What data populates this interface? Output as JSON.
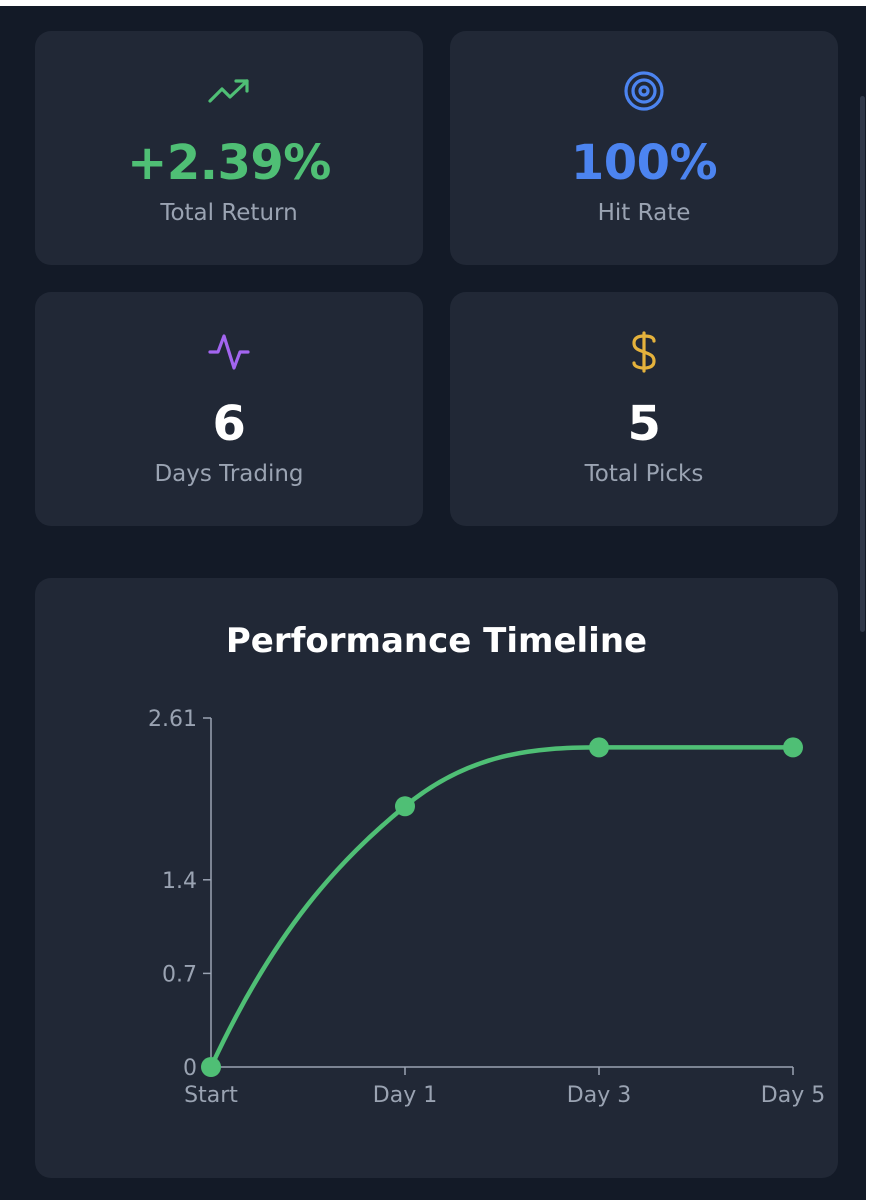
{
  "stats": [
    {
      "value": "+2.39%",
      "label": "Total Return",
      "icon": "trending-up-icon",
      "color": "#4fbf75"
    },
    {
      "value": "100%",
      "label": "Hit Rate",
      "icon": "target-icon",
      "color": "#4c84f0"
    },
    {
      "value": "6",
      "label": "Days Trading",
      "icon": "activity-icon",
      "color": "#a365f0"
    },
    {
      "value": "5",
      "label": "Total Picks",
      "icon": "dollar-icon",
      "color": "#e5b23c"
    }
  ],
  "chart": {
    "title": "Performance Timeline"
  },
  "chart_data": {
    "type": "line",
    "title": "Performance Timeline",
    "categories": [
      "Start",
      "Day 1",
      "Day 3",
      "Day 5"
    ],
    "series": [
      {
        "values": [
          0,
          1.95,
          2.39,
          2.39
        ],
        "color": "#4fbf75"
      }
    ],
    "yticks": [
      "0",
      "0.7",
      "1.4",
      "2.61"
    ],
    "ylim": [
      0,
      2.61
    ],
    "grid": false
  }
}
